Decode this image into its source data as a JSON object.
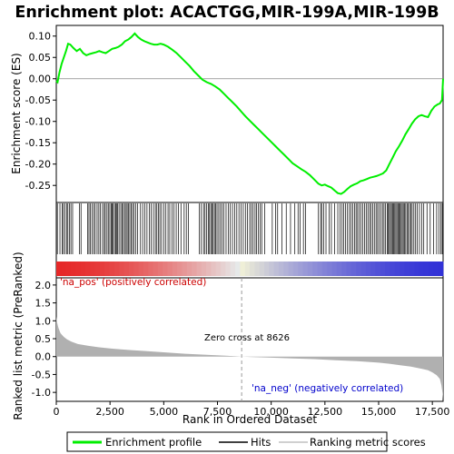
{
  "chart_data": {
    "type": "line",
    "title": "Enrichment plot: ACACTGG,MIR-199A,MIR-199B",
    "xlabel": "Rank in Ordered Dataset",
    "ylabel_top": "Enrichment score (ES)",
    "ylabel_bottom": "Ranked list metric (PreRanked)",
    "xlim": [
      0,
      18000
    ],
    "x_ticks": [
      0,
      2500,
      5000,
      7500,
      10000,
      12500,
      15000,
      17500
    ],
    "x_tick_labels": [
      "0",
      "2,500",
      "5,000",
      "7,500",
      "10,000",
      "12,500",
      "15,000",
      "17,500"
    ],
    "es_ylim": [
      -0.29,
      0.125
    ],
    "es_ticks": [
      0.1,
      0.05,
      0.0,
      -0.05,
      -0.1,
      -0.15,
      -0.2,
      -0.25
    ],
    "es_tick_labels": [
      "0.10",
      "0.05",
      "0.00",
      "-0.05",
      "-0.10",
      "-0.15",
      "-0.20",
      "-0.25"
    ],
    "metric_ylim": [
      -1.25,
      2.2
    ],
    "metric_ticks": [
      2.0,
      1.5,
      1.0,
      0.5,
      0.0,
      -0.5,
      -1.0
    ],
    "metric_tick_labels": [
      "2.0",
      "1.5",
      "1.0",
      "0.5",
      "0.0",
      "-0.5",
      "-1.0"
    ],
    "enrichment_profile": {
      "name": "Enrichment profile",
      "color": "#00ee00",
      "x": [
        0,
        60,
        150,
        250,
        350,
        450,
        550,
        650,
        800,
        950,
        1100,
        1250,
        1400,
        1550,
        1700,
        1850,
        2000,
        2150,
        2300,
        2450,
        2600,
        2750,
        2900,
        3050,
        3200,
        3350,
        3500,
        3650,
        3800,
        3950,
        4100,
        4250,
        4400,
        4550,
        4700,
        4850,
        5000,
        5200,
        5400,
        5600,
        5800,
        6000,
        6200,
        6400,
        6600,
        6800,
        7000,
        7200,
        7400,
        7600,
        7800,
        8000,
        8200,
        8400,
        8626,
        8800,
        9000,
        9200,
        9400,
        9600,
        9800,
        10000,
        10200,
        10400,
        10600,
        10800,
        11000,
        11200,
        11400,
        11600,
        11800,
        12000,
        12200,
        12350,
        12500,
        12650,
        12800,
        12950,
        13100,
        13250,
        13400,
        13550,
        13700,
        13850,
        14000,
        14150,
        14300,
        14450,
        14600,
        14750,
        14900,
        15050,
        15200,
        15350,
        15500,
        15650,
        15800,
        15950,
        16100,
        16250,
        16400,
        16550,
        16700,
        16850,
        17000,
        17150,
        17300,
        17450,
        17600,
        17750,
        17850,
        17950,
        17980,
        18000
      ],
      "values": [
        -0.005,
        -0.008,
        0.015,
        0.035,
        0.05,
        0.065,
        0.082,
        0.08,
        0.072,
        0.065,
        0.07,
        0.06,
        0.055,
        0.058,
        0.06,
        0.062,
        0.065,
        0.062,
        0.06,
        0.065,
        0.07,
        0.072,
        0.075,
        0.08,
        0.088,
        0.092,
        0.098,
        0.106,
        0.098,
        0.092,
        0.088,
        0.085,
        0.082,
        0.08,
        0.08,
        0.082,
        0.08,
        0.075,
        0.068,
        0.06,
        0.05,
        0.04,
        0.03,
        0.018,
        0.008,
        -0.002,
        -0.008,
        -0.012,
        -0.018,
        -0.025,
        -0.035,
        -0.045,
        -0.055,
        -0.065,
        -0.078,
        -0.088,
        -0.098,
        -0.108,
        -0.118,
        -0.128,
        -0.138,
        -0.148,
        -0.158,
        -0.168,
        -0.178,
        -0.188,
        -0.198,
        -0.205,
        -0.212,
        -0.218,
        -0.226,
        -0.236,
        -0.246,
        -0.25,
        -0.248,
        -0.252,
        -0.255,
        -0.262,
        -0.268,
        -0.27,
        -0.265,
        -0.258,
        -0.252,
        -0.248,
        -0.245,
        -0.24,
        -0.238,
        -0.235,
        -0.232,
        -0.23,
        -0.228,
        -0.225,
        -0.222,
        -0.215,
        -0.2,
        -0.185,
        -0.17,
        -0.158,
        -0.145,
        -0.13,
        -0.118,
        -0.105,
        -0.095,
        -0.088,
        -0.085,
        -0.088,
        -0.09,
        -0.075,
        -0.065,
        -0.06,
        -0.058,
        -0.05,
        -0.02,
        0.0
      ]
    },
    "hits_label": "Hits",
    "metric_legend_label": "Ranking metric scores",
    "hits": [
      50,
      170,
      270,
      330,
      400,
      480,
      540,
      610,
      680,
      760,
      1080,
      1150,
      1460,
      1520,
      1590,
      1660,
      1740,
      1810,
      1900,
      1980,
      2050,
      2150,
      2230,
      2280,
      2360,
      2420,
      2490,
      2550,
      2600,
      2640,
      2710,
      2760,
      2800,
      2850,
      2920,
      3000,
      3060,
      3120,
      3180,
      3250,
      3300,
      3360,
      3420,
      3480,
      3550,
      3620,
      3700,
      3780,
      3920,
      4020,
      4120,
      4220,
      4330,
      4410,
      4520,
      4610,
      4680,
      4750,
      4820,
      4900,
      5000,
      5100,
      5200,
      5280,
      5380,
      5480,
      5580,
      5680,
      5800,
      5950,
      6050,
      6150,
      6650,
      6750,
      6850,
      6920,
      7000,
      7070,
      7130,
      7190,
      7250,
      7300,
      7360,
      7420,
      7480,
      7560,
      7640,
      7720,
      7800,
      7900,
      8000,
      8100,
      8200,
      8300,
      8400,
      8500,
      8600,
      8700,
      8800,
      8900,
      9000,
      9080,
      9160,
      9250,
      9320,
      9400,
      9480,
      9560,
      9700,
      10050,
      10200,
      10300,
      10500,
      10700,
      10900,
      11100,
      11250,
      11350,
      11500,
      11600,
      12200,
      12300,
      12350,
      12450,
      12550,
      12700,
      12800,
      12950,
      13100,
      13200,
      13300,
      13380,
      13460,
      13550,
      13640,
      13720,
      13800,
      13880,
      13950,
      14020,
      14100,
      14180,
      14260,
      14340,
      14420,
      14500,
      14580,
      14650,
      14720,
      14800,
      14880,
      14950,
      15020,
      15100,
      15180,
      15250,
      15320,
      15400,
      15450,
      15500,
      15550,
      15600,
      15650,
      15700,
      15750,
      15800,
      15850,
      15900,
      15950,
      16000,
      16050,
      16100,
      16150,
      16200,
      16260,
      16320,
      16380,
      16440,
      16500,
      16560,
      16640,
      16720,
      16800,
      16900,
      17000,
      17100,
      17250,
      17400,
      17550,
      17700,
      17800,
      17900,
      17960
    ],
    "metric": {
      "x": [
        0,
        40,
        100,
        200,
        350,
        500,
        700,
        1000,
        1500,
        2000,
        2500,
        3000,
        3500,
        4000,
        5000,
        6000,
        7000,
        8000,
        8626,
        9000,
        10000,
        11000,
        12000,
        13000,
        14000,
        15000,
        15500,
        16000,
        16500,
        17000,
        17300,
        17500,
        17700,
        17850,
        17920,
        17980,
        18000
      ],
      "values": [
        1.12,
        0.95,
        0.8,
        0.65,
        0.55,
        0.48,
        0.42,
        0.35,
        0.3,
        0.26,
        0.23,
        0.2,
        0.18,
        0.16,
        0.12,
        0.08,
        0.05,
        0.02,
        0.0,
        -0.01,
        -0.03,
        -0.05,
        -0.07,
        -0.1,
        -0.13,
        -0.17,
        -0.2,
        -0.24,
        -0.28,
        -0.34,
        -0.38,
        -0.44,
        -0.52,
        -0.62,
        -0.8,
        -1.05,
        -1.2
      ]
    },
    "zero_cross_label": "Zero cross at 8626",
    "zero_cross_x": 8626,
    "pos_label": "'na_pos' (positively correlated)",
    "neg_label": "'na_neg' (negatively correlated)",
    "pos_label_color": "#cc0000",
    "neg_label_color": "#0000cc"
  }
}
